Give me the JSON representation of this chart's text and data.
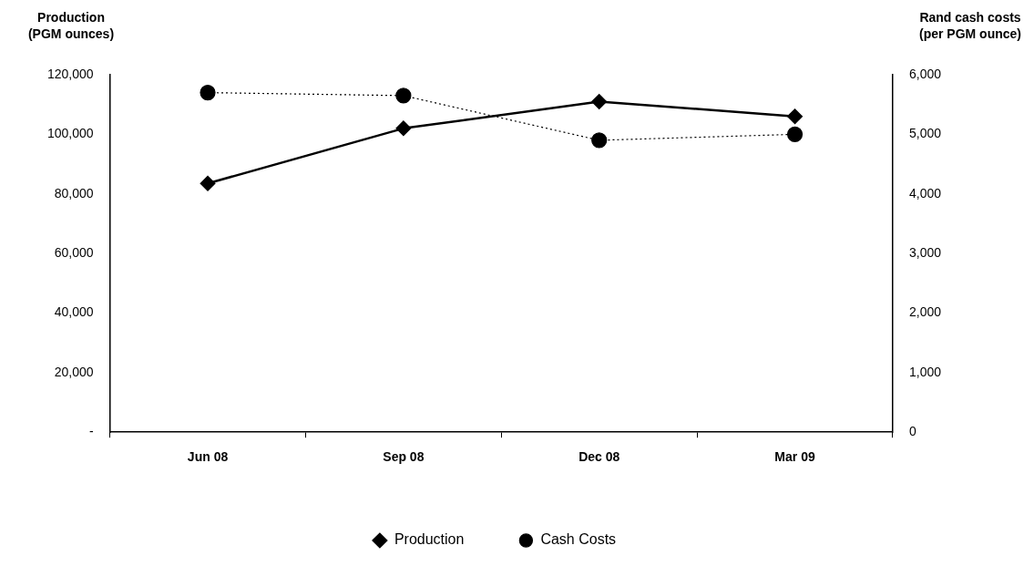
{
  "chart_data": {
    "type": "line",
    "ylabel": "Production\n(PGM ounces)",
    "y2label": "Rand cash costs\n(per PGM ounce)",
    "categories": [
      "Jun 08",
      "Sep 08",
      "Dec 08",
      "Mar 09"
    ],
    "series": [
      {
        "name": "Production",
        "color": "#000000",
        "values": [
          83500,
          102000,
          111000,
          106000
        ],
        "marker": "diamond",
        "line_style": "solid"
      },
      {
        "name": "Cash Costs",
        "color": "#000000",
        "values": [
          5700,
          5650,
          4900,
          5000
        ],
        "axis": "y2",
        "marker": "circle",
        "line_style": "dotted"
      }
    ],
    "ylim": [
      0,
      120000
    ],
    "yticks": [
      {
        "value": 0,
        "label": "-"
      },
      {
        "value": 20000,
        "label": "20,000"
      },
      {
        "value": 40000,
        "label": "40,000"
      },
      {
        "value": 60000,
        "label": "60,000"
      },
      {
        "value": 80000,
        "label": "80,000"
      },
      {
        "value": 100000,
        "label": "100,000"
      },
      {
        "value": 120000,
        "label": "120,000"
      }
    ],
    "y2lim": [
      0,
      6000
    ],
    "y2ticks": [
      0,
      {
        "value": 1000,
        "label": "1,000"
      },
      {
        "value": 2000,
        "label": "2,000"
      },
      {
        "value": 3000,
        "label": "3,000"
      },
      {
        "value": 4000,
        "label": "4,000"
      },
      {
        "value": 5000,
        "label": "5,000"
      },
      {
        "value": 6000,
        "label": "6,000"
      }
    ],
    "grid": false,
    "legend": "bottom"
  }
}
